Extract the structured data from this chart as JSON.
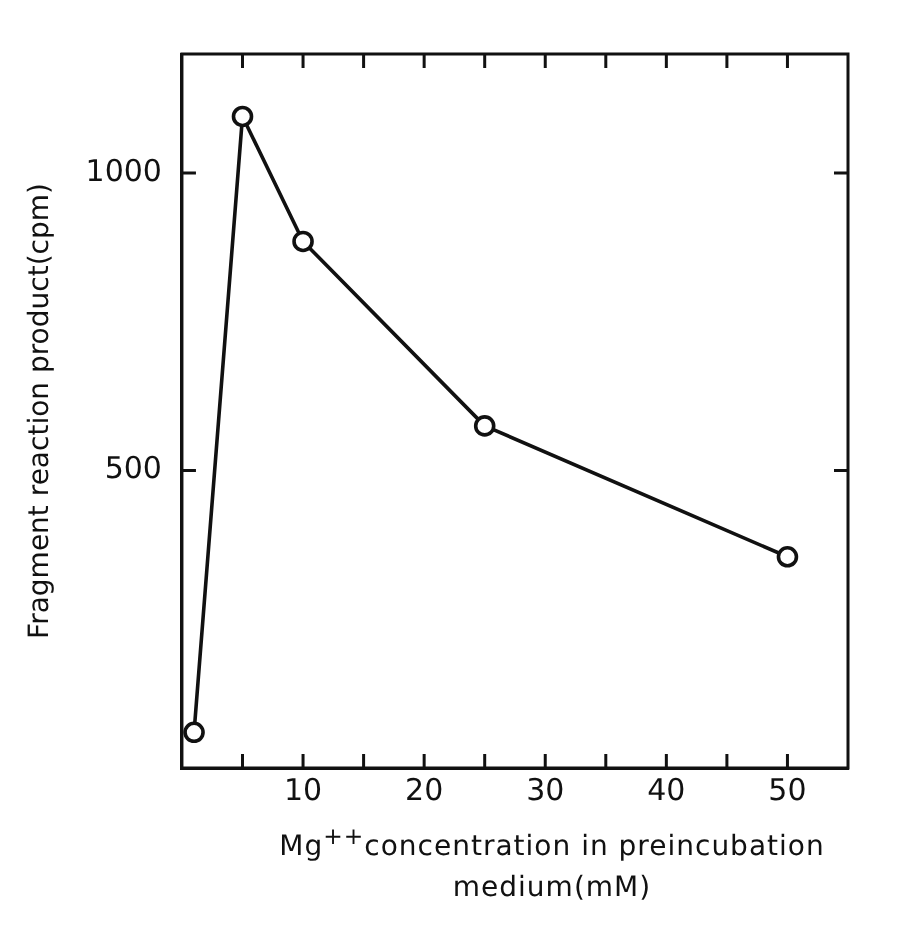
{
  "chart_data": {
    "type": "line",
    "xlabel": "Mg$^{++}$concentration in preincubation medium(mM)",
    "ylabel": "Fragment reaction product(cpm)",
    "x": [
      1,
      5,
      10,
      25,
      50
    ],
    "series": [
      {
        "color": "#111111",
        "values": [
          60,
          1095,
          885,
          575,
          355
        ]
      }
    ],
    "xlim": [
      0,
      55
    ],
    "xticks": [
      {
        "value": 5,
        "label": null
      },
      10,
      {
        "value": 15,
        "label": null
      },
      20,
      {
        "value": 25,
        "label": null
      },
      30,
      {
        "value": 35,
        "label": null
      },
      40,
      {
        "value": 45,
        "label": null
      },
      50
    ],
    "ylim": [
      0,
      1200
    ],
    "yticks": [
      500,
      1000
    ],
    "marker": "circle",
    "line_style": "solid",
    "grid": false,
    "legend": false
  }
}
